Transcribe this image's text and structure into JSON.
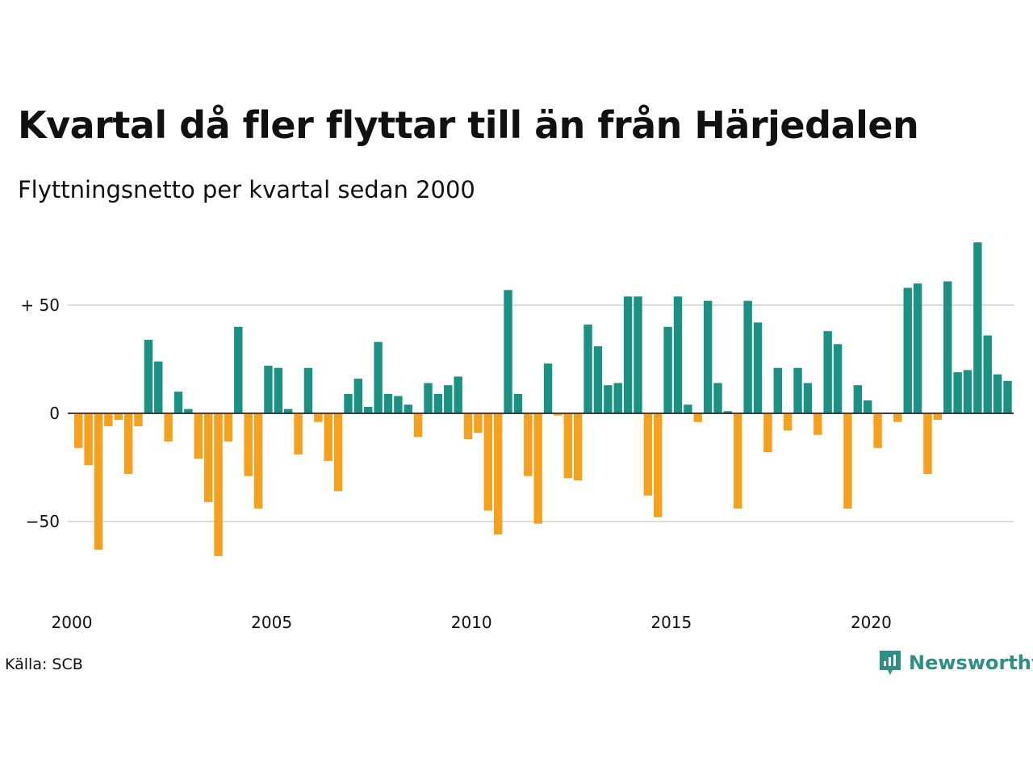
{
  "title": "Kvartal då fler flyttar till än från Härjedalen",
  "subtitle": "Flyttningsnetto per kvartal sedan 2000",
  "source": "Källa: SCB",
  "brand": {
    "name": "Newsworthy",
    "icon": "newsworthy-logo-icon"
  },
  "colors": {
    "positive": "#1a9283",
    "negative": "#f6a01c",
    "grid": "#dddddd"
  },
  "chart_data": {
    "type": "bar",
    "x_start": "2000 Q1",
    "x_ticks": [
      {
        "year": 2000,
        "label": "2000"
      },
      {
        "year": 2005,
        "label": "2005"
      },
      {
        "year": 2010,
        "label": "2010"
      },
      {
        "year": 2015,
        "label": "2015"
      },
      {
        "year": 2020,
        "label": "2020"
      }
    ],
    "y_ticks": [
      {
        "value": 50,
        "label": "+ 50"
      },
      {
        "value": 0,
        "label": "0"
      },
      {
        "value": -50,
        "label": "−50"
      }
    ],
    "ylim": [
      -80,
      80
    ],
    "grid": true,
    "values": [
      -16,
      -24,
      -63,
      -6,
      -3,
      -28,
      -6,
      34,
      24,
      -13,
      10,
      2,
      -21,
      -41,
      -66,
      -13,
      40,
      -29,
      -44,
      22,
      21,
      2,
      -19,
      21,
      -4,
      -22,
      -36,
      9,
      16,
      3,
      33,
      9,
      8,
      4,
      -11,
      14,
      9,
      13,
      17,
      -12,
      -9,
      -45,
      -56,
      57,
      9,
      -29,
      -51,
      23,
      -1,
      -30,
      -31,
      41,
      31,
      13,
      14,
      54,
      54,
      -38,
      -48,
      40,
      54,
      4,
      -4,
      52,
      14,
      1,
      -44,
      52,
      42,
      -18,
      21,
      -8,
      21,
      14,
      -10,
      38,
      32,
      -44,
      13,
      6,
      -16,
      0,
      -4,
      58,
      60,
      -28,
      -3,
      61,
      19,
      20,
      79,
      36,
      18,
      15
    ]
  }
}
